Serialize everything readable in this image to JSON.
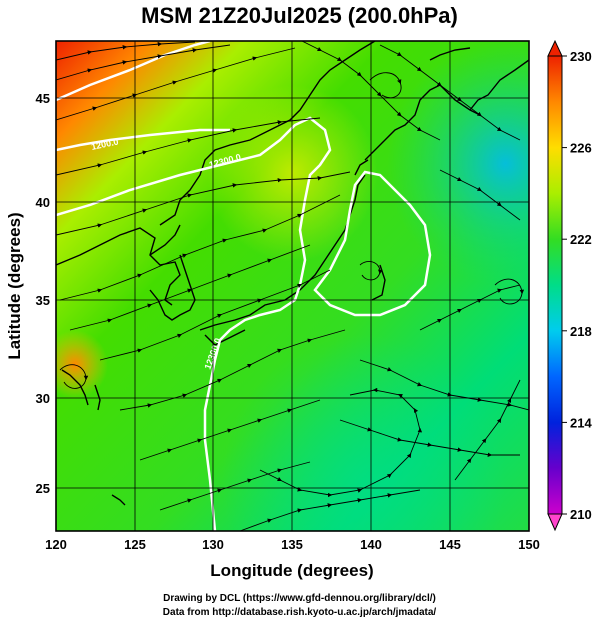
{
  "title": "MSM 21Z20Jul2025 (200.0hPa)",
  "map": {
    "x_axis": {
      "label": "Longitude (degrees)",
      "range": [
        120,
        150
      ],
      "ticks": [
        120,
        125,
        130,
        135,
        140,
        145,
        150
      ]
    },
    "y_axis": {
      "label": "Latitude  (degrees)",
      "range": [
        22.5,
        47.5
      ],
      "ticks": [
        25,
        30,
        35,
        40,
        45
      ]
    },
    "grid": true,
    "field": "geopotential height (colour shading) with streamlines",
    "contour_labels": [
      "1200.0",
      "12300.0",
      "12300.0"
    ]
  },
  "colorbar": {
    "min": 210,
    "max": 230,
    "ticks": [
      210,
      214,
      218,
      222,
      226,
      230
    ],
    "colors": [
      "#cc00cc",
      "#3300cc",
      "#0033ff",
      "#00aaff",
      "#00ddcc",
      "#00dd66",
      "#33dd00",
      "#aaee00",
      "#ffcc00",
      "#ff6600",
      "#ee2200"
    ]
  },
  "credits": {
    "line1": "Drawing by DCL (https://www.gfd-dennou.org/library/dcl/)",
    "line2": "Data from http://database.rish.kyoto-u.ac.jp/arch/jmadata/"
  }
}
